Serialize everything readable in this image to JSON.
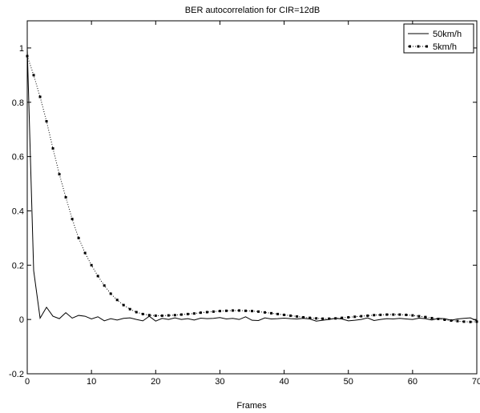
{
  "chart_data": {
    "type": "line",
    "title": "BER autocorrelation for CIR=12dB",
    "xlabel": "Frames",
    "ylabel": "",
    "xlim": [
      0,
      70
    ],
    "ylim": [
      -0.2,
      1.1
    ],
    "xticks": [
      0,
      10,
      20,
      30,
      40,
      50,
      60,
      70
    ],
    "yticks": [
      -0.2,
      0,
      0.2,
      0.4,
      0.6,
      0.8,
      1
    ],
    "ytick_labels": [
      "-0.2",
      "0",
      "0.2",
      "0.4",
      "0.6",
      "0.8",
      "1"
    ],
    "legend_position": "top-right",
    "grid": false,
    "series": [
      {
        "name": "50km/h",
        "style": "solid",
        "color": "#000000",
        "x": [
          0,
          1,
          2,
          3,
          4,
          5,
          6,
          7,
          8,
          9,
          10,
          11,
          12,
          13,
          14,
          15,
          16,
          17,
          18,
          19,
          20,
          21,
          22,
          23,
          24,
          25,
          26,
          27,
          28,
          29,
          30,
          31,
          32,
          33,
          34,
          35,
          36,
          37,
          38,
          39,
          40,
          41,
          42,
          43,
          44,
          45,
          46,
          47,
          48,
          49,
          50,
          51,
          52,
          53,
          54,
          55,
          56,
          57,
          58,
          59,
          60,
          61,
          62,
          63,
          64,
          65,
          66,
          67,
          68,
          69,
          70
        ],
        "values": [
          1.0,
          0.18,
          0.005,
          0.045,
          0.012,
          0.003,
          0.025,
          0.005,
          0.015,
          0.012,
          0.002,
          0.01,
          -0.005,
          0.003,
          -0.002,
          0.004,
          0.006,
          0.0,
          -0.005,
          0.012,
          -0.006,
          0.004,
          0.0,
          0.006,
          0.0,
          0.003,
          -0.002,
          0.005,
          0.003,
          0.004,
          0.007,
          0.002,
          0.004,
          0.0,
          0.01,
          -0.003,
          -0.004,
          0.006,
          0.002,
          0.003,
          0.005,
          0.003,
          0.002,
          0.004,
          0.002,
          -0.006,
          -0.003,
          0.0,
          0.004,
          0.002,
          -0.005,
          -0.003,
          0.0,
          0.006,
          -0.004,
          0.0,
          0.003,
          0.002,
          0.004,
          0.002,
          0.0,
          0.005,
          0.003,
          -0.002,
          0.004,
          0.003,
          -0.003,
          0.002,
          0.004,
          0.006,
          -0.005
        ]
      },
      {
        "name": "5km/h",
        "style": "dotted-markers",
        "color": "#000000",
        "x": [
          0,
          1,
          2,
          3,
          4,
          5,
          6,
          7,
          8,
          9,
          10,
          11,
          12,
          13,
          14,
          15,
          16,
          17,
          18,
          19,
          20,
          21,
          22,
          23,
          24,
          25,
          26,
          27,
          28,
          29,
          30,
          31,
          32,
          33,
          34,
          35,
          36,
          37,
          38,
          39,
          40,
          41,
          42,
          43,
          44,
          45,
          46,
          47,
          48,
          49,
          50,
          51,
          52,
          53,
          54,
          55,
          56,
          57,
          58,
          59,
          60,
          61,
          62,
          63,
          64,
          65,
          66,
          67,
          68,
          69,
          70
        ],
        "values": [
          0.97,
          0.9,
          0.82,
          0.73,
          0.63,
          0.535,
          0.45,
          0.37,
          0.3,
          0.245,
          0.2,
          0.16,
          0.125,
          0.095,
          0.072,
          0.053,
          0.038,
          0.027,
          0.02,
          0.016,
          0.014,
          0.014,
          0.015,
          0.016,
          0.018,
          0.02,
          0.022,
          0.025,
          0.027,
          0.029,
          0.031,
          0.032,
          0.033,
          0.033,
          0.032,
          0.031,
          0.029,
          0.026,
          0.023,
          0.02,
          0.017,
          0.014,
          0.011,
          0.008,
          0.006,
          0.004,
          0.003,
          0.003,
          0.004,
          0.006,
          0.008,
          0.01,
          0.012,
          0.014,
          0.016,
          0.017,
          0.018,
          0.018,
          0.018,
          0.017,
          0.015,
          0.012,
          0.009,
          0.005,
          0.002,
          -0.001,
          -0.004,
          -0.006,
          -0.008,
          -0.009,
          -0.008
        ]
      }
    ]
  }
}
